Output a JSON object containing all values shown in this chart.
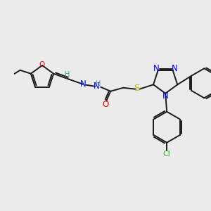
{
  "bg_color": "#ebebeb",
  "bond_color": "#1a1a1a",
  "atom_colors": {
    "N": "#0000ee",
    "O": "#ee0000",
    "S": "#bbbb00",
    "Cl": "#22bb22",
    "H": "#4a9999"
  },
  "lw": 1.4,
  "fs": 7.5,
  "fig_size": [
    3.0,
    3.0
  ],
  "dpi": 100
}
